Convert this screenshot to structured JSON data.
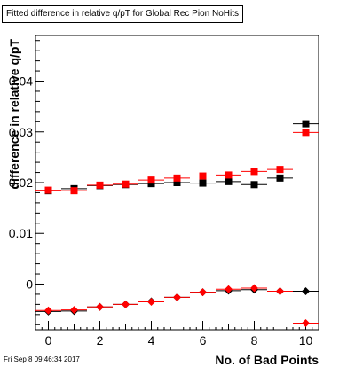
{
  "chart_data": {
    "type": "scatter",
    "title": "Fitted difference in relative q/pT for Global Rec Pion NoHits",
    "xlabel": "No. of Bad Points",
    "ylabel": "difference in relative q/pT",
    "xlim": [
      -0.5,
      10.5
    ],
    "ylim": [
      -0.009,
      0.049
    ],
    "x_ticks": [
      0,
      2,
      4,
      6,
      8,
      10
    ],
    "x_tick_labels": [
      "0",
      "2",
      "4",
      "6",
      "8",
      "10"
    ],
    "y_ticks": [
      0.0,
      0.01,
      0.02,
      0.03,
      0.04
    ],
    "y_tick_labels": [
      "0",
      "0.01",
      "0.02",
      "0.03",
      "0.04"
    ],
    "grid": false,
    "legend": false,
    "series": [
      {
        "color": "#000000",
        "marker": "square",
        "points": [
          {
            "x": 0,
            "y": 0.0184
          },
          {
            "x": 1,
            "y": 0.0188
          },
          {
            "x": 2,
            "y": 0.0194
          },
          {
            "x": 3,
            "y": 0.0196
          },
          {
            "x": 4,
            "y": 0.0198
          },
          {
            "x": 5,
            "y": 0.02
          },
          {
            "x": 6,
            "y": 0.0199
          },
          {
            "x": 7,
            "y": 0.0202
          },
          {
            "x": 8,
            "y": 0.0196
          },
          {
            "x": 9,
            "y": 0.0209
          },
          {
            "x": 10,
            "y": 0.0316
          }
        ]
      },
      {
        "color": "#ff0000",
        "marker": "square",
        "points": [
          {
            "x": 0,
            "y": 0.0185
          },
          {
            "x": 1,
            "y": 0.0184
          },
          {
            "x": 2,
            "y": 0.0195
          },
          {
            "x": 3,
            "y": 0.0197
          },
          {
            "x": 4,
            "y": 0.0205
          },
          {
            "x": 5,
            "y": 0.0209
          },
          {
            "x": 6,
            "y": 0.0213
          },
          {
            "x": 7,
            "y": 0.0215
          },
          {
            "x": 8,
            "y": 0.0222
          },
          {
            "x": 9,
            "y": 0.0226
          },
          {
            "x": 10,
            "y": 0.0299
          }
        ]
      },
      {
        "color": "#000000",
        "marker": "diamond",
        "points": [
          {
            "x": 0,
            "y": -0.0054
          },
          {
            "x": 1,
            "y": -0.0053
          },
          {
            "x": 2,
            "y": -0.0045
          },
          {
            "x": 3,
            "y": -0.004
          },
          {
            "x": 4,
            "y": -0.0034
          },
          {
            "x": 5,
            "y": -0.0026
          },
          {
            "x": 6,
            "y": -0.0016
          },
          {
            "x": 7,
            "y": -0.0013
          },
          {
            "x": 8,
            "y": -0.0011
          },
          {
            "x": 9,
            "y": -0.0014
          },
          {
            "x": 10,
            "y": -0.0014
          }
        ]
      },
      {
        "color": "#ff0000",
        "marker": "diamond",
        "points": [
          {
            "x": 0,
            "y": -0.0052
          },
          {
            "x": 1,
            "y": -0.0051
          },
          {
            "x": 2,
            "y": -0.0045
          },
          {
            "x": 3,
            "y": -0.004
          },
          {
            "x": 4,
            "y": -0.0035
          },
          {
            "x": 5,
            "y": -0.0026
          },
          {
            "x": 6,
            "y": -0.0016
          },
          {
            "x": 7,
            "y": -0.001
          },
          {
            "x": 8,
            "y": -0.0008
          },
          {
            "x": 9,
            "y": -0.0014
          },
          {
            "x": 10,
            "y": -0.0077
          }
        ]
      }
    ]
  },
  "footer": {
    "timestamp": "Fri Sep  8 09:46:34 2017"
  }
}
